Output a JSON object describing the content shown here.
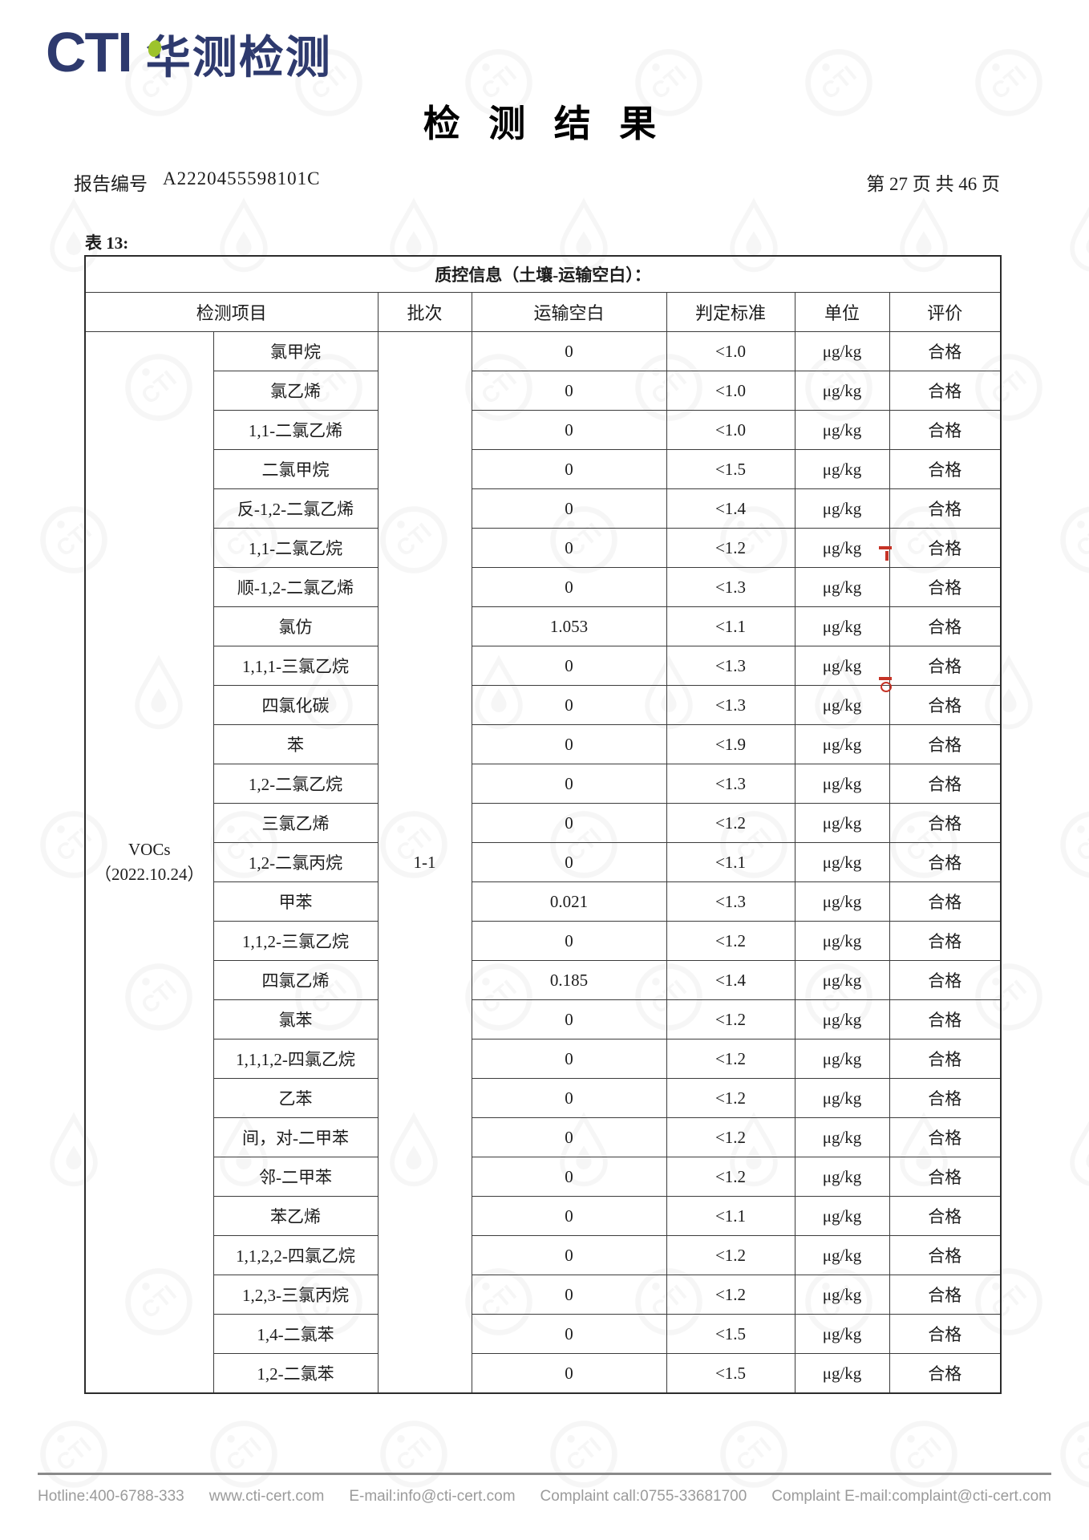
{
  "header": {
    "logo_text": "CTI",
    "logo_cn": "华测检测",
    "title": "检 测 结 果",
    "report_label": "报告编号",
    "report_no": "A2220455598101C",
    "page_info": "第 27 页 共 46 页"
  },
  "table": {
    "caption": "表 13:",
    "qc_title": "质控信息（土壤-运输空白）：",
    "columns": [
      "检测项目",
      "批次",
      "运输空白",
      "判定标准",
      "单位",
      "评价"
    ],
    "group_name": "VOCs",
    "group_date": "（2022.10.24）",
    "batch": "1-1",
    "rows": [
      {
        "item": "氯甲烷",
        "blank": "0",
        "standard": "<1.0",
        "unit": "μg/kg",
        "result": "合格"
      },
      {
        "item": "氯乙烯",
        "blank": "0",
        "standard": "<1.0",
        "unit": "μg/kg",
        "result": "合格"
      },
      {
        "item": "1,1-二氯乙烯",
        "blank": "0",
        "standard": "<1.0",
        "unit": "μg/kg",
        "result": "合格"
      },
      {
        "item": "二氯甲烷",
        "blank": "0",
        "standard": "<1.5",
        "unit": "μg/kg",
        "result": "合格"
      },
      {
        "item": "反-1,2-二氯乙烯",
        "blank": "0",
        "standard": "<1.4",
        "unit": "μg/kg",
        "result": "合格"
      },
      {
        "item": "1,1-二氯乙烷",
        "blank": "0",
        "standard": "<1.2",
        "unit": "μg/kg",
        "result": "合格"
      },
      {
        "item": "顺-1,2-二氯乙烯",
        "blank": "0",
        "standard": "<1.3",
        "unit": "μg/kg",
        "result": "合格"
      },
      {
        "item": "氯仿",
        "blank": "1.053",
        "standard": "<1.1",
        "unit": "μg/kg",
        "result": "合格"
      },
      {
        "item": "1,1,1-三氯乙烷",
        "blank": "0",
        "standard": "<1.3",
        "unit": "μg/kg",
        "result": "合格"
      },
      {
        "item": "四氯化碳",
        "blank": "0",
        "standard": "<1.3",
        "unit": "μg/kg",
        "result": "合格"
      },
      {
        "item": "苯",
        "blank": "0",
        "standard": "<1.9",
        "unit": "μg/kg",
        "result": "合格"
      },
      {
        "item": "1,2-二氯乙烷",
        "blank": "0",
        "standard": "<1.3",
        "unit": "μg/kg",
        "result": "合格"
      },
      {
        "item": "三氯乙烯",
        "blank": "0",
        "standard": "<1.2",
        "unit": "μg/kg",
        "result": "合格"
      },
      {
        "item": "1,2-二氯丙烷",
        "blank": "0",
        "standard": "<1.1",
        "unit": "μg/kg",
        "result": "合格"
      },
      {
        "item": "甲苯",
        "blank": "0.021",
        "standard": "<1.3",
        "unit": "μg/kg",
        "result": "合格"
      },
      {
        "item": "1,1,2-三氯乙烷",
        "blank": "0",
        "standard": "<1.2",
        "unit": "μg/kg",
        "result": "合格"
      },
      {
        "item": "四氯乙烯",
        "blank": "0.185",
        "standard": "<1.4",
        "unit": "μg/kg",
        "result": "合格"
      },
      {
        "item": "氯苯",
        "blank": "0",
        "standard": "<1.2",
        "unit": "μg/kg",
        "result": "合格"
      },
      {
        "item": "1,1,1,2-四氯乙烷",
        "blank": "0",
        "standard": "<1.2",
        "unit": "μg/kg",
        "result": "合格"
      },
      {
        "item": "乙苯",
        "blank": "0",
        "standard": "<1.2",
        "unit": "μg/kg",
        "result": "合格"
      },
      {
        "item": "间，对-二甲苯",
        "blank": "0",
        "standard": "<1.2",
        "unit": "μg/kg",
        "result": "合格"
      },
      {
        "item": "邻-二甲苯",
        "blank": "0",
        "standard": "<1.2",
        "unit": "μg/kg",
        "result": "合格"
      },
      {
        "item": "苯乙烯",
        "blank": "0",
        "standard": "<1.1",
        "unit": "μg/kg",
        "result": "合格"
      },
      {
        "item": "1,1,2,2-四氯乙烷",
        "blank": "0",
        "standard": "<1.2",
        "unit": "μg/kg",
        "result": "合格"
      },
      {
        "item": "1,2,3-三氯丙烷",
        "blank": "0",
        "standard": "<1.2",
        "unit": "μg/kg",
        "result": "合格"
      },
      {
        "item": "1,4-二氯苯",
        "blank": "0",
        "standard": "<1.5",
        "unit": "μg/kg",
        "result": "合格"
      },
      {
        "item": "1,2-二氯苯",
        "blank": "0",
        "standard": "<1.5",
        "unit": "μg/kg",
        "result": "合格"
      }
    ]
  },
  "footer": {
    "hotline": "Hotline:400-6788-333",
    "website": "www.cti-cert.com",
    "email": "E-mail:info@cti-cert.com",
    "complaint_call": "Complaint call:0755-33681700",
    "complaint_email": "Complaint E-mail:complaint@cti-cert.com"
  },
  "colors": {
    "brand_navy": "#2e3a6e",
    "brand_green": "#9dc32c",
    "footer_gray": "#9b9b9b",
    "mark_red": "#c63326"
  }
}
